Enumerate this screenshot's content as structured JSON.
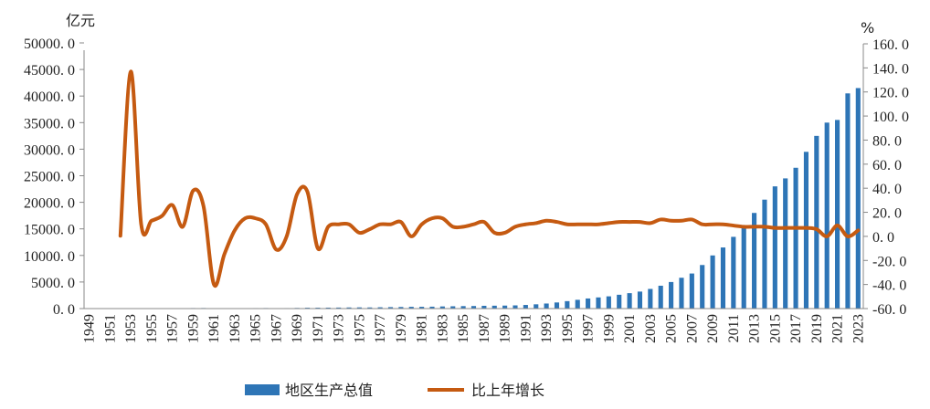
{
  "chart_data": {
    "type": "bar+line",
    "title": "",
    "y_left_unit": "亿元",
    "y_right_unit": "%",
    "y_left_range": [
      0,
      50000
    ],
    "y_right_range": [
      -60,
      160
    ],
    "y_left_ticks": [
      "0.0",
      "5000.0",
      "10000.0",
      "15000.0",
      "20000.0",
      "25000.0",
      "30000.0",
      "35000.0",
      "40000.0",
      "45000.0",
      "50000.0"
    ],
    "y_right_ticks": [
      "-60.0",
      "-40.0",
      "-20.0",
      "0.0",
      "20.0",
      "40.0",
      "60.0",
      "80.0",
      "100.0",
      "120.0",
      "140.0",
      "160.0"
    ],
    "x_tick_labels": [
      "1949",
      "1951",
      "1953",
      "1955",
      "1957",
      "1959",
      "1961",
      "1963",
      "1965",
      "1967",
      "1969",
      "1971",
      "1973",
      "1975",
      "1977",
      "1979",
      "1981",
      "1983",
      "1985",
      "1987",
      "1989",
      "1991",
      "1993",
      "1995",
      "1997",
      "1999",
      "2001",
      "2003",
      "2005",
      "2007",
      "2009",
      "2011",
      "2013",
      "2015",
      "2017",
      "2019",
      "2021",
      "2023"
    ],
    "years": [
      1949,
      1950,
      1951,
      1952,
      1953,
      1954,
      1955,
      1956,
      1957,
      1958,
      1959,
      1960,
      1961,
      1962,
      1963,
      1964,
      1965,
      1966,
      1967,
      1968,
      1969,
      1970,
      1971,
      1972,
      1973,
      1974,
      1975,
      1976,
      1977,
      1978,
      1979,
      1980,
      1981,
      1982,
      1983,
      1984,
      1985,
      1986,
      1987,
      1988,
      1989,
      1990,
      1991,
      1992,
      1993,
      1994,
      1995,
      1996,
      1997,
      1998,
      1999,
      2000,
      2001,
      2002,
      2003,
      2004,
      2005,
      2006,
      2007,
      2008,
      2009,
      2010,
      2011,
      2012,
      2013,
      2014,
      2015,
      2016,
      2017,
      2018,
      2019,
      2020,
      2021,
      2022,
      2023
    ],
    "series": [
      {
        "name": "地区生产总值",
        "type": "bar",
        "axis": "left",
        "color": "#2e75b6",
        "values": [
          20,
          22,
          25,
          28,
          40,
          45,
          50,
          55,
          65,
          75,
          95,
          105,
          70,
          60,
          65,
          75,
          90,
          100,
          85,
          90,
          120,
          160,
          165,
          175,
          190,
          210,
          225,
          215,
          245,
          275,
          300,
          330,
          335,
          355,
          400,
          430,
          460,
          480,
          520,
          540,
          560,
          600,
          680,
          800,
          950,
          1150,
          1400,
          1650,
          1900,
          2100,
          2300,
          2600,
          2900,
          3200,
          3700,
          4300,
          5000,
          5800,
          6600,
          8200,
          10000,
          11500,
          13500,
          15500,
          18000,
          20500,
          23000,
          24500,
          26500,
          29500,
          32500,
          35000,
          35500,
          40500,
          41500
        ]
      },
      {
        "name": "比上年增长",
        "type": "line",
        "axis": "right",
        "color": "#c55a11",
        "values": [
          null,
          null,
          null,
          0.5,
          137,
          10,
          13,
          17,
          26,
          8,
          38,
          25,
          -40,
          -15,
          5,
          15,
          15,
          10,
          -11,
          0,
          35,
          37,
          -10,
          8,
          10,
          10,
          3,
          6,
          10,
          10,
          12,
          0,
          10,
          15,
          15,
          8,
          8,
          10,
          12,
          3,
          3,
          8,
          10,
          11,
          13,
          12,
          10,
          10,
          10,
          10,
          11,
          12,
          12,
          12,
          11,
          14,
          13,
          13,
          14,
          10,
          10,
          10,
          9,
          8,
          8,
          8,
          7,
          7,
          7,
          7,
          6,
          0,
          9,
          0,
          5
        ]
      }
    ],
    "legend": [
      "地区生产总值",
      "比上年增长"
    ],
    "legend_position": "bottom"
  }
}
